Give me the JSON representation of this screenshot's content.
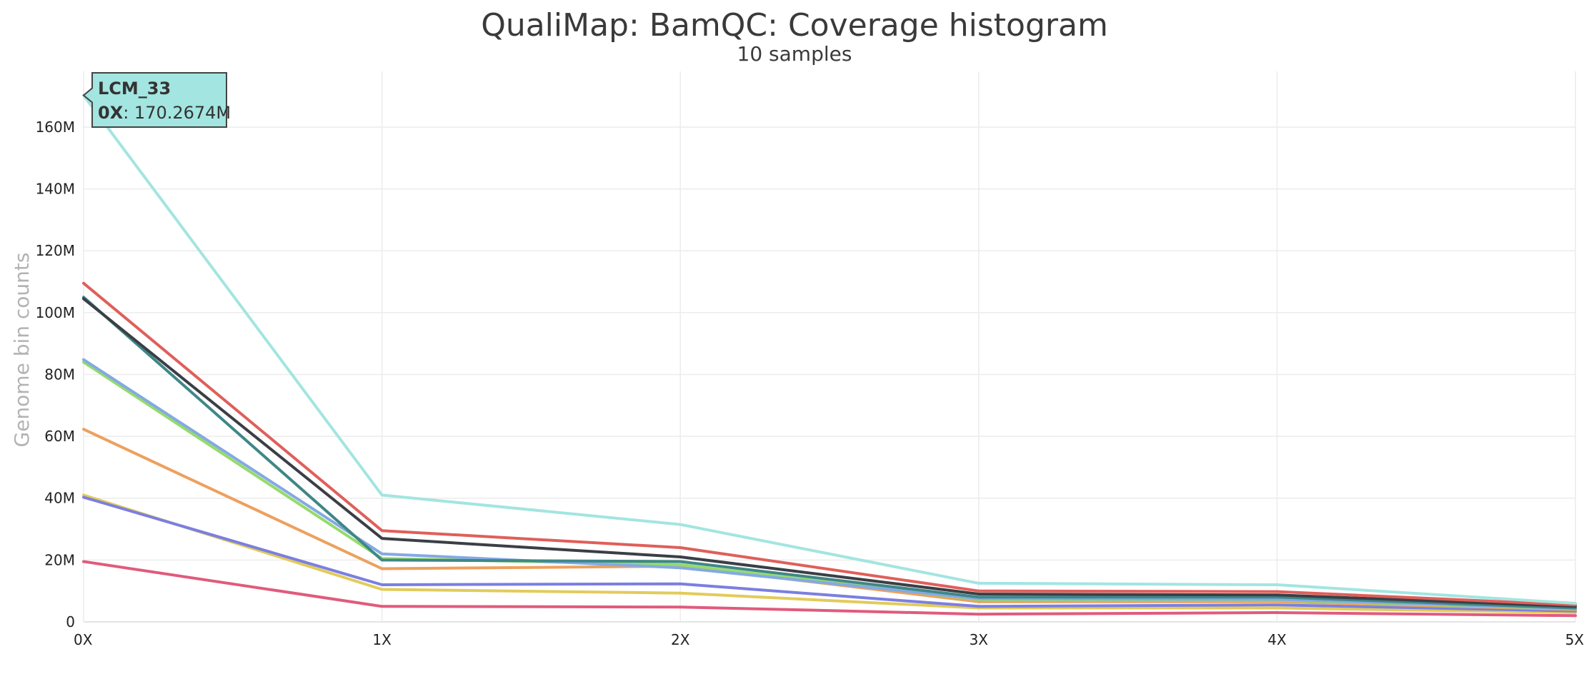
{
  "chart_data": {
    "type": "line",
    "title": "QualiMap: BamQC: Coverage histogram",
    "subtitle": "10 samples",
    "xlabel": "",
    "ylabel": "Genome bin counts",
    "categories": [
      "0X",
      "1X",
      "2X",
      "3X",
      "4X",
      "5X"
    ],
    "y_ticks": [
      0,
      20,
      40,
      60,
      80,
      100,
      120,
      140,
      160
    ],
    "y_tick_labels": [
      "0",
      "20M",
      "40M",
      "60M",
      "80M",
      "100M",
      "120M",
      "140M",
      "160M"
    ],
    "ylim": [
      0,
      178
    ],
    "y_unit": "millions",
    "grid": true,
    "legend": "none",
    "series": [
      {
        "name": "LCM_33",
        "color": "#a3e5e0",
        "values": [
          170.2674,
          41,
          31.5,
          12.5,
          12,
          6
        ]
      },
      {
        "color": "#df5f5a",
        "values": [
          109.5,
          29.5,
          24,
          10,
          9.8,
          5.5
        ]
      },
      {
        "color": "#3b3f45",
        "values": [
          104.5,
          27,
          21,
          9,
          8.7,
          5
        ]
      },
      {
        "color": "#3f8787",
        "values": [
          105,
          20,
          19.5,
          8,
          8,
          4.5
        ]
      },
      {
        "color": "#84a9e3",
        "values": [
          84.8,
          22,
          17.5,
          7.5,
          7.3,
          4.3
        ]
      },
      {
        "color": "#95db6a",
        "values": [
          84,
          20.5,
          18.5,
          7.2,
          7,
          4.2
        ]
      },
      {
        "color": "#eda05d",
        "values": [
          62.3,
          17.2,
          18,
          6.5,
          6.5,
          4
        ]
      },
      {
        "color": "#7b7fe0",
        "values": [
          40.3,
          12,
          12.3,
          5,
          5.5,
          3.5
        ]
      },
      {
        "color": "#e2cb5a",
        "values": [
          41,
          10.5,
          9.3,
          4.5,
          4.5,
          3
        ]
      },
      {
        "color": "#e05b7c",
        "values": [
          19.5,
          5,
          4.8,
          2.5,
          3,
          2
        ]
      }
    ],
    "tooltip": {
      "series": "LCM_33",
      "category": "0X",
      "value_text": ": 170.2674M"
    }
  }
}
